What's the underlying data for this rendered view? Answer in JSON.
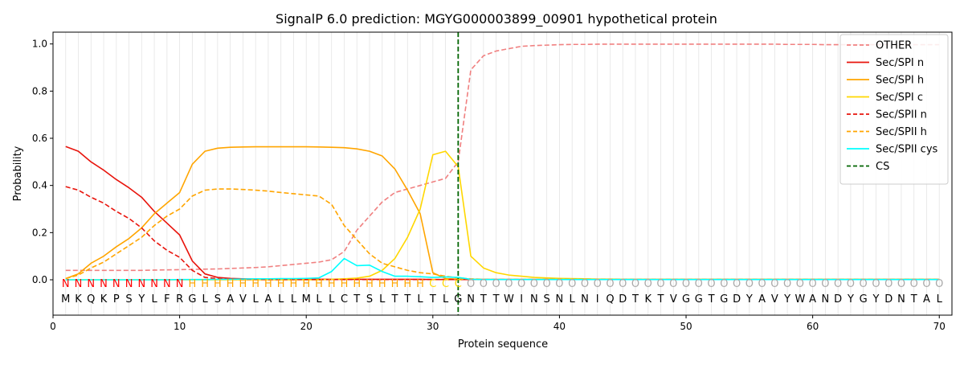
{
  "chart_data": {
    "type": "line",
    "title": "SignalP 6.0 prediction: MGYG000003899_00901 hypothetical protein",
    "xlabel": "Protein sequence",
    "ylabel": "Probability",
    "xlim": [
      0,
      71
    ],
    "ylim": [
      -0.15,
      1.05
    ],
    "xticks": [
      0,
      10,
      20,
      30,
      40,
      50,
      60,
      70
    ],
    "yticks": [
      0.0,
      0.2,
      0.4,
      0.6,
      0.8,
      1.0
    ],
    "legend_position": "top-right",
    "sequence": "MKQKPSYLFRGLSAVLALLMLLCTSLTTLTLGNTTWINSNLNIQDTKTVGGTGDYAVYWANDYGYDNTAL",
    "region_labels": "NNNNNNNNNNHHHHHHHHHHHHHHHHHHHCCCOOOOOOOOOOOOOOOOOOOOOOOOOOOOOOOOOOOOOO",
    "region_colors": {
      "N": "#ff0000",
      "H": "#ffa500",
      "C": "#ffd700",
      "O": "#a9a9a9"
    },
    "cleavage_site": 32,
    "series": [
      {
        "name": "OTHER",
        "color": "#f08080",
        "dash": "dashed",
        "values": [
          0.04,
          0.04,
          0.04,
          0.04,
          0.04,
          0.04,
          0.04,
          0.041,
          0.042,
          0.043,
          0.044,
          0.045,
          0.046,
          0.048,
          0.05,
          0.052,
          0.055,
          0.06,
          0.065,
          0.07,
          0.075,
          0.085,
          0.12,
          0.21,
          0.27,
          0.33,
          0.37,
          0.385,
          0.4,
          0.415,
          0.43,
          0.5,
          0.89,
          0.95,
          0.97,
          0.98,
          0.99,
          0.993,
          0.995,
          0.997,
          0.998,
          0.998,
          0.999,
          0.999,
          0.999,
          0.999,
          0.999,
          0.999,
          0.999,
          0.999,
          0.999,
          0.999,
          0.999,
          0.999,
          0.999,
          0.999,
          0.999,
          0.998,
          0.998,
          0.998,
          0.997,
          0.997,
          0.997,
          0.997,
          0.997,
          0.997,
          0.997,
          0.997,
          0.997,
          0.997
        ]
      },
      {
        "name": "Sec/SPI n",
        "color": "#e8140c",
        "dash": "solid",
        "values": [
          0.565,
          0.545,
          0.5,
          0.465,
          0.425,
          0.39,
          0.35,
          0.29,
          0.24,
          0.19,
          0.08,
          0.025,
          0.01,
          0.006,
          0.004,
          0.003,
          0.002,
          0.002,
          0.002,
          0.002,
          0.002,
          0.002,
          0.002,
          0.002,
          0.002,
          0.002,
          0.002,
          0.002,
          0.002,
          0.001,
          0.001,
          0.001,
          0.001,
          0.001,
          0.001,
          0.001,
          0.001,
          0.001,
          0.001,
          0.001,
          0.001,
          0.001,
          0.001,
          0.001,
          0.001,
          0.001,
          0.001,
          0.001,
          0.001,
          0.001,
          0.001,
          0.001,
          0.001,
          0.001,
          0.001,
          0.001,
          0.001,
          0.001,
          0.001,
          0.001,
          0.001,
          0.001,
          0.001,
          0.001,
          0.001,
          0.001,
          0.001,
          0.001,
          0.001,
          0.001
        ]
      },
      {
        "name": "Sec/SPI h",
        "color": "#ffa500",
        "dash": "solid",
        "values": [
          0.005,
          0.025,
          0.07,
          0.1,
          0.14,
          0.175,
          0.22,
          0.28,
          0.325,
          0.37,
          0.49,
          0.545,
          0.558,
          0.562,
          0.563,
          0.564,
          0.564,
          0.564,
          0.564,
          0.564,
          0.563,
          0.562,
          0.56,
          0.555,
          0.545,
          0.525,
          0.47,
          0.38,
          0.28,
          0.03,
          0.005,
          0.003,
          0.002,
          0.001,
          0.001,
          0.001,
          0.001,
          0.001,
          0.001,
          0.001,
          0.001,
          0.001,
          0.001,
          0.001,
          0.001,
          0.001,
          0.001,
          0.001,
          0.001,
          0.001,
          0.001,
          0.001,
          0.001,
          0.001,
          0.001,
          0.001,
          0.001,
          0.001,
          0.001,
          0.001,
          0.001,
          0.001,
          0.001,
          0.001,
          0.001,
          0.001,
          0.001,
          0.001,
          0.001,
          0.001
        ]
      },
      {
        "name": "Sec/SPI c",
        "color": "#ffd700",
        "dash": "solid",
        "values": [
          0.0,
          0.0,
          0.0,
          0.0,
          0.0,
          0.0,
          0.0,
          0.0,
          0.0,
          0.0,
          0.0,
          0.0,
          0.0,
          0.0,
          0.0,
          0.0,
          0.0,
          0.0,
          0.0,
          0.0,
          0.0,
          0.002,
          0.004,
          0.007,
          0.015,
          0.04,
          0.09,
          0.18,
          0.3,
          0.53,
          0.545,
          0.48,
          0.1,
          0.05,
          0.03,
          0.02,
          0.015,
          0.01,
          0.008,
          0.006,
          0.005,
          0.004,
          0.003,
          0.003,
          0.002,
          0.002,
          0.002,
          0.002,
          0.002,
          0.002,
          0.002,
          0.002,
          0.002,
          0.002,
          0.002,
          0.002,
          0.002,
          0.002,
          0.002,
          0.002,
          0.002,
          0.002,
          0.002,
          0.002,
          0.002,
          0.002,
          0.002,
          0.002,
          0.002,
          0.002
        ]
      },
      {
        "name": "Sec/SPII n",
        "color": "#e8140c",
        "dash": "dashed",
        "values": [
          0.395,
          0.38,
          0.35,
          0.325,
          0.29,
          0.26,
          0.22,
          0.165,
          0.125,
          0.095,
          0.04,
          0.01,
          0.005,
          0.003,
          0.002,
          0.002,
          0.001,
          0.001,
          0.001,
          0.001,
          0.001,
          0.001,
          0.001,
          0.001,
          0.001,
          0.001,
          0.001,
          0.001,
          0.001,
          0.001,
          0.001,
          0.001,
          0.001,
          0.001,
          0.001,
          0.001,
          0.001,
          0.001,
          0.001,
          0.001,
          0.001,
          0.001,
          0.001,
          0.001,
          0.001,
          0.001,
          0.001,
          0.001,
          0.001,
          0.001,
          0.001,
          0.001,
          0.001,
          0.001,
          0.001,
          0.001,
          0.001,
          0.001,
          0.001,
          0.001,
          0.001,
          0.001,
          0.001,
          0.001,
          0.001,
          0.001,
          0.001,
          0.001,
          0.001,
          0.001
        ]
      },
      {
        "name": "Sec/SPII h",
        "color": "#ffa500",
        "dash": "dashed",
        "values": [
          0.005,
          0.02,
          0.05,
          0.075,
          0.11,
          0.145,
          0.18,
          0.23,
          0.27,
          0.3,
          0.355,
          0.38,
          0.385,
          0.385,
          0.383,
          0.38,
          0.376,
          0.37,
          0.365,
          0.36,
          0.355,
          0.32,
          0.23,
          0.17,
          0.11,
          0.07,
          0.055,
          0.04,
          0.03,
          0.025,
          0.015,
          0.008,
          0.004,
          0.002,
          0.001,
          0.001,
          0.001,
          0.001,
          0.001,
          0.001,
          0.001,
          0.001,
          0.001,
          0.001,
          0.001,
          0.001,
          0.001,
          0.001,
          0.001,
          0.001,
          0.001,
          0.001,
          0.001,
          0.001,
          0.001,
          0.001,
          0.001,
          0.001,
          0.001,
          0.001,
          0.001,
          0.001,
          0.001,
          0.001,
          0.001,
          0.001,
          0.001,
          0.001,
          0.001,
          0.001
        ]
      },
      {
        "name": "Sec/SPII cys",
        "color": "#00ffff",
        "dash": "solid",
        "values": [
          0.0,
          0.0,
          0.0,
          0.0,
          0.0,
          0.0,
          0.0,
          0.0,
          0.0,
          0.001,
          0.001,
          0.001,
          0.002,
          0.002,
          0.003,
          0.004,
          0.004,
          0.005,
          0.005,
          0.006,
          0.008,
          0.035,
          0.09,
          0.06,
          0.062,
          0.035,
          0.015,
          0.015,
          0.013,
          0.01,
          0.012,
          0.01,
          0.002,
          0.001,
          0.001,
          0.001,
          0.001,
          0.001,
          0.001,
          0.001,
          0.001,
          0.001,
          0.001,
          0.001,
          0.001,
          0.001,
          0.001,
          0.001,
          0.001,
          0.001,
          0.001,
          0.001,
          0.001,
          0.001,
          0.001,
          0.001,
          0.001,
          0.001,
          0.001,
          0.001,
          0.001,
          0.001,
          0.001,
          0.001,
          0.001,
          0.001,
          0.001,
          0.001,
          0.001,
          0.001
        ]
      }
    ],
    "cs_legend": {
      "name": "CS",
      "color": "#006400",
      "dash": "dashed"
    }
  }
}
